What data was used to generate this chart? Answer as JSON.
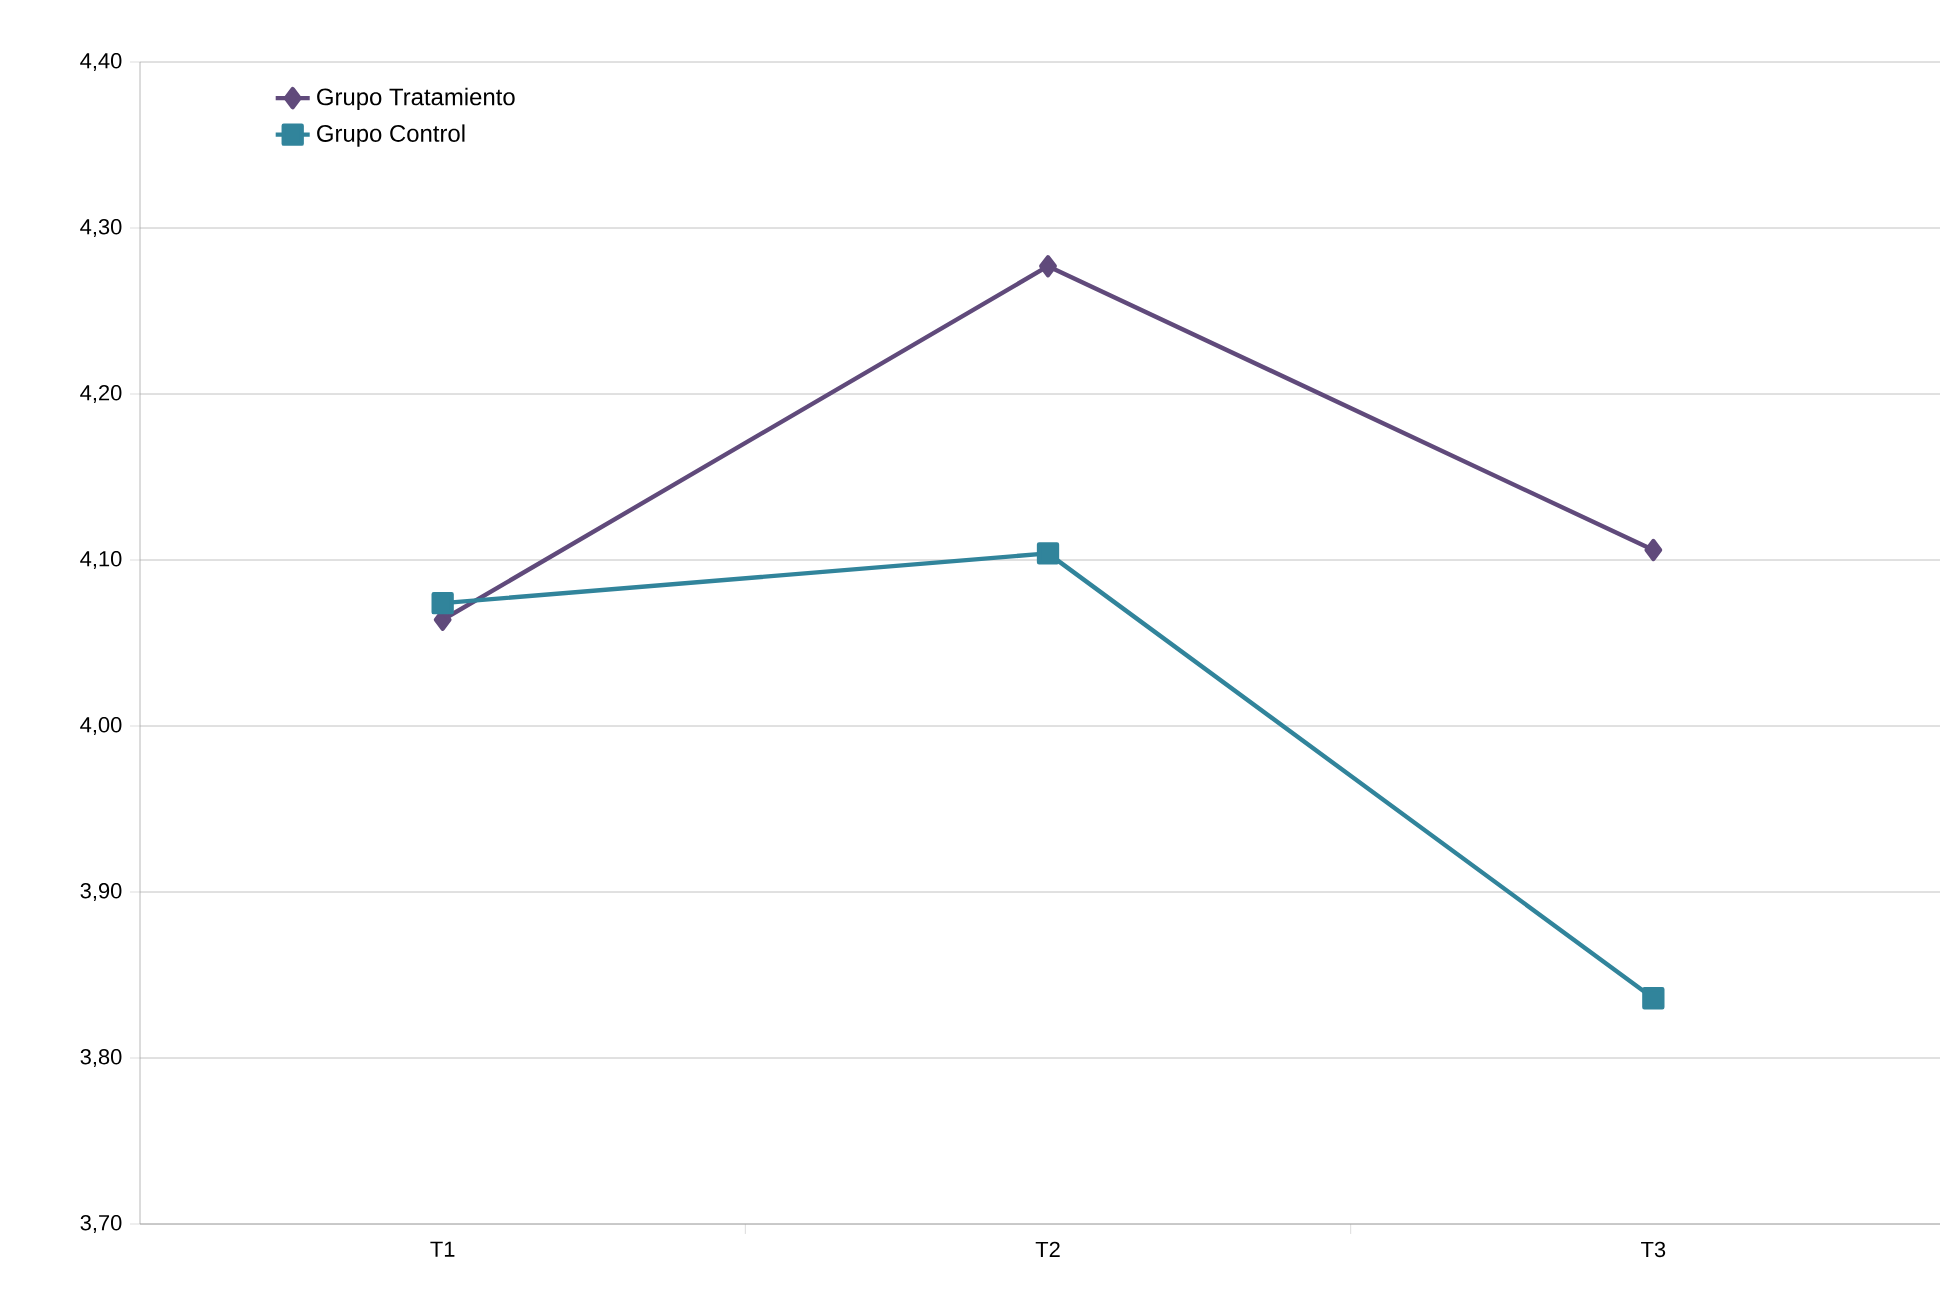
{
  "chart_data": {
    "type": "line",
    "categories": [
      "T1",
      "T2",
      "T3"
    ],
    "series": [
      {
        "name": "Grupo Tratamiento",
        "color": "#604a7b",
        "marker": "diamond",
        "values": [
          4.064,
          4.277,
          4.106
        ]
      },
      {
        "name": "Grupo Control",
        "color": "#31849b",
        "marker": "square",
        "values": [
          4.074,
          4.104,
          3.836
        ]
      }
    ],
    "ylim": [
      3.7,
      4.4
    ],
    "yticks": [
      {
        "value": 3.7,
        "label": "3,70"
      },
      {
        "value": 3.8,
        "label": "3,80"
      },
      {
        "value": 3.9,
        "label": "3,90"
      },
      {
        "value": 4.0,
        "label": "4,00"
      },
      {
        "value": 4.1,
        "label": "4,10"
      },
      {
        "value": 4.2,
        "label": "4,20"
      },
      {
        "value": 4.3,
        "label": "4,30"
      },
      {
        "value": 4.4,
        "label": "4,40"
      }
    ],
    "grid": "y",
    "legend": "top left"
  }
}
